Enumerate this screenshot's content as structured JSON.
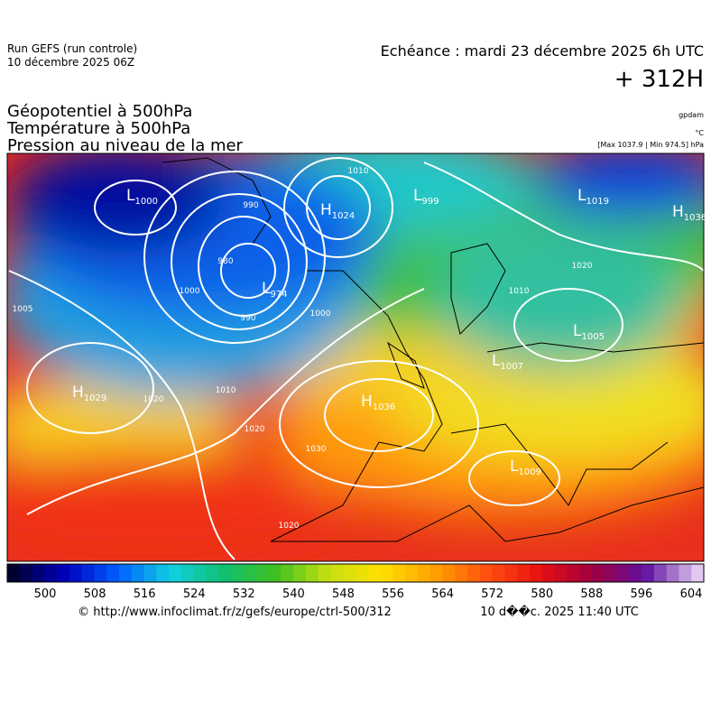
{
  "header": {
    "run": "Run GEFS (run controle)",
    "run_date": "10 décembre 2025 06Z",
    "echeance": "Echéance : mardi 23 décembre 2025 6h UTC",
    "lead": "+ 312H",
    "titles": [
      "Géopotentiel à 500hPa",
      "Température à 500hPa",
      "Pression au niveau de la mer"
    ],
    "units": [
      "gpdam",
      "°C",
      "[Max 1037.9 | Min 974.5] hPa"
    ]
  },
  "centers": [
    {
      "letter": "L",
      "value": "1000"
    },
    {
      "letter": "H",
      "value": "1024"
    },
    {
      "letter": "L",
      "value": "999"
    },
    {
      "letter": "L",
      "value": "1019"
    },
    {
      "letter": "H",
      "value": "1036"
    },
    {
      "letter": "L",
      "value": "974"
    },
    {
      "letter": "L",
      "value": "1005"
    },
    {
      "letter": "L",
      "value": "1007"
    },
    {
      "letter": "H",
      "value": "1029"
    },
    {
      "letter": "H",
      "value": "1036"
    },
    {
      "letter": "L",
      "value": "1009"
    }
  ],
  "isobar_labels": [
    "990",
    "980",
    "1000",
    "990",
    "1010",
    "1020",
    "1010",
    "1000",
    "1020",
    "1030",
    "1020",
    "1005",
    "1020",
    "1010"
  ],
  "colorbar": {
    "ticks": [
      500,
      508,
      516,
      524,
      532,
      540,
      548,
      556,
      564,
      572,
      580,
      588,
      596,
      604
    ]
  },
  "footer": {
    "source": "© http://www.infoclimat.fr/z/gefs/europe/ctrl-500/312",
    "stamp": "10 d��c. 2025 11:40 UTC"
  }
}
